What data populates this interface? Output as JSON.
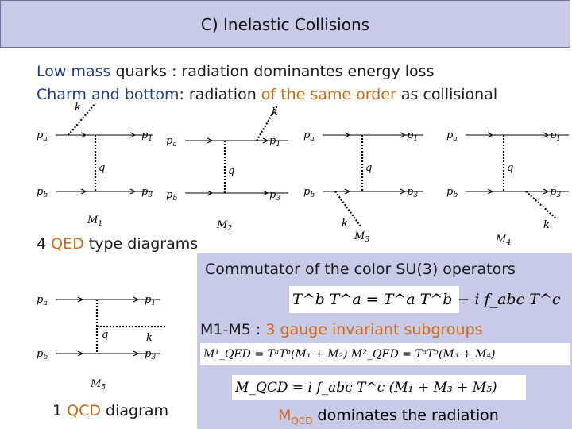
{
  "title": "C) Inelastic Collisions",
  "line1": {
    "a": "Low mass",
    "b": " quarks : radiation dominantes energy loss"
  },
  "line2": {
    "a": "Charm and bottom",
    "b": ":  radiation ",
    "c": "of the same order",
    "d": " as collisional"
  },
  "diagram_labels": {
    "pa": "p",
    "pa_sub": "a",
    "pb": "p",
    "pb_sub": "b",
    "p1": "p",
    "p1_sub": "1",
    "p3": "p",
    "p3_sub": "3",
    "q": "q",
    "k": "k"
  },
  "diagram_names": {
    "m1": "M",
    "m1_sub": "1",
    "m2": "M",
    "m2_sub": "2",
    "m3": "M",
    "m3_sub": "3",
    "m4": "M",
    "m4_sub": "4",
    "m5": "M",
    "m5_sub": "5"
  },
  "qed": {
    "num": "4 ",
    "word": "QED",
    "rest": " type diagrams"
  },
  "box_title": "Commutator of the color SU(3) operators",
  "commutator_formula": "T^b T^a = T^a T^b − i f_abc T^c",
  "subgroups": {
    "a": "M1-M5 : ",
    "b": "3 gauge invariant subgroups"
  },
  "mqed_formula": "M¹_QED = TᵃTᵇ(M₁ + M₂)   M²_QED = TᵃTᵇ(M₃ + M₄)",
  "mqcd_formula": "M_QCD = i f_abc T^c (M₁ + M₃ + M₅)",
  "qcd": {
    "num": "1 ",
    "word": "QCD",
    "rest": " diagram"
  },
  "dominates": {
    "m": "M",
    "sub": "QCD",
    "rest": "  dominates the radiation"
  }
}
